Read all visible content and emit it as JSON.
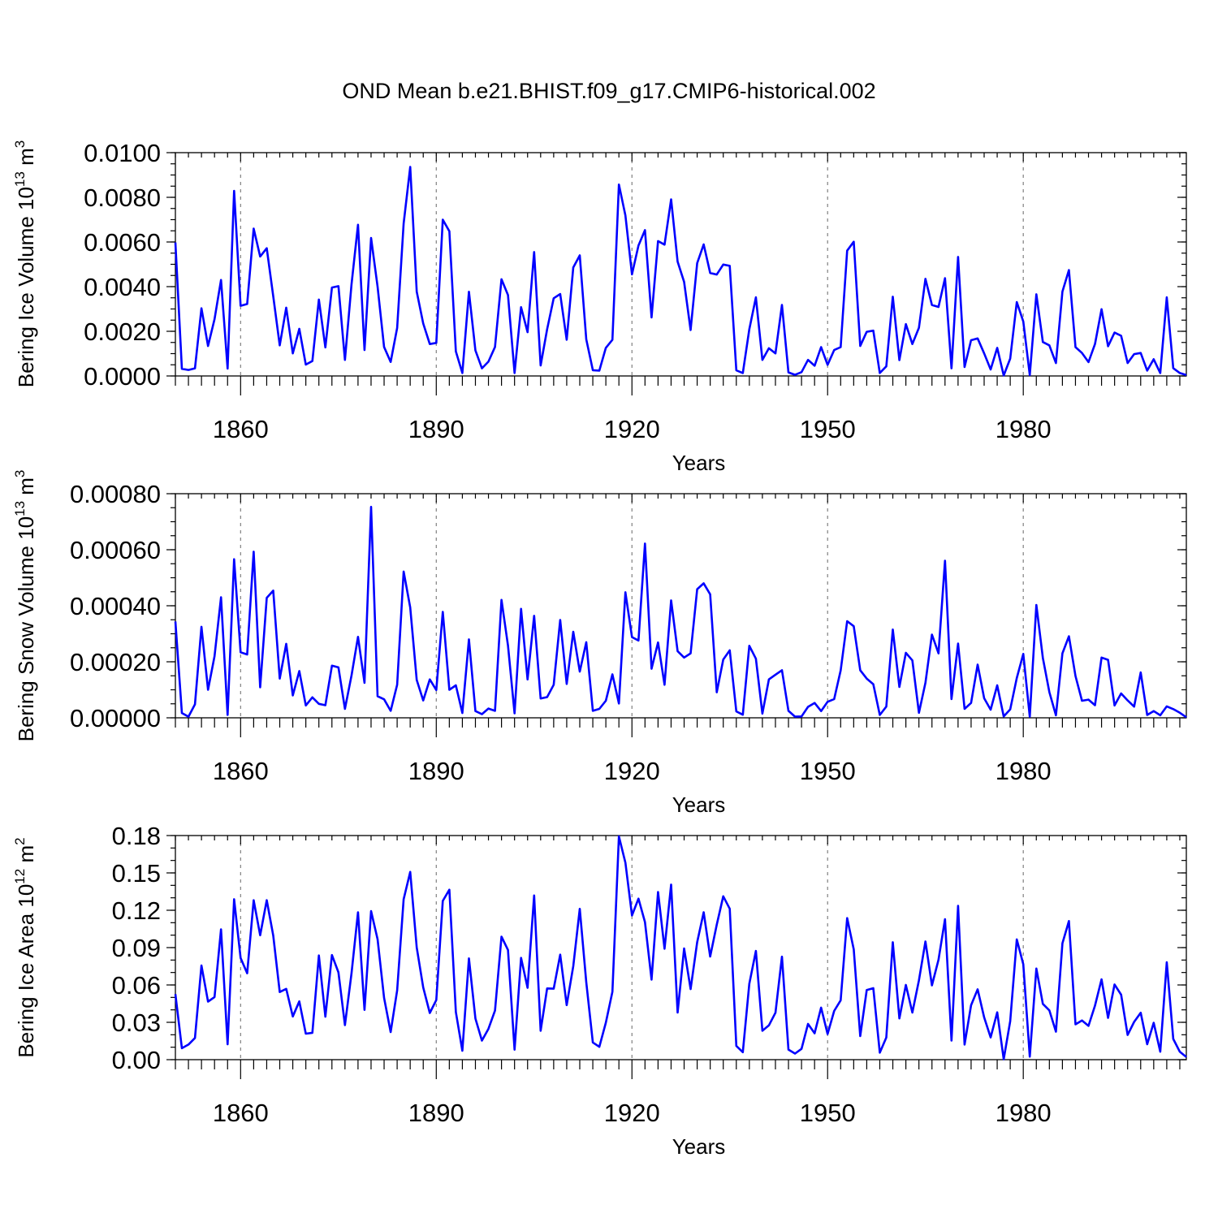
{
  "figure_title": "OND Mean b.e21.BHIST.f09_g17.CMIP6-historical.002",
  "chart_data": [
    {
      "type": "line",
      "title": "",
      "ylabel_main": "Bering Ice Volume 10",
      "ylabel_exp": "13",
      "ylabel_unit": " m",
      "ylabel_unit_exp": "3",
      "xlabel": "Years",
      "xlim": [
        1850,
        2005
      ],
      "ylim": [
        0,
        0.01
      ],
      "yticks": [
        "0.0000",
        "0.0020",
        "0.0040",
        "0.0060",
        "0.0080",
        "0.0100"
      ],
      "ytick_values": [
        0,
        0.002,
        0.004,
        0.006,
        0.008,
        0.01
      ],
      "yminor_step": 0.0005,
      "xticks": [
        "1860",
        "1890",
        "1920",
        "1950",
        "1980"
      ],
      "xtick_values": [
        1860,
        1890,
        1920,
        1950,
        1980
      ],
      "grid": "dashed vertical at major x ticks",
      "series": [
        {
          "name": "Bering Ice Volume",
          "color": "#0000ff",
          "x_start": 1850,
          "x_step": 1,
          "values": [
            0.00598,
            0.00032,
            0.00027,
            0.00034,
            0.00303,
            0.00134,
            0.00254,
            0.0043,
            0.00033,
            0.00829,
            0.00314,
            0.00322,
            0.0066,
            0.00535,
            0.00572,
            0.00357,
            0.00137,
            0.00306,
            0.00101,
            0.00211,
            0.00051,
            0.00067,
            0.00342,
            0.00128,
            0.00396,
            0.00402,
            0.00072,
            0.0041,
            0.00677,
            0.00116,
            0.00618,
            0.004,
            0.0013,
            0.00063,
            0.00215,
            0.00683,
            0.00936,
            0.00378,
            0.00235,
            0.00143,
            0.00148,
            0.007,
            0.00648,
            0.0011,
            0.00013,
            0.00377,
            0.00114,
            0.00034,
            0.00064,
            0.0013,
            0.00433,
            0.00362,
            0.00013,
            0.00308,
            0.00196,
            0.00555,
            0.00047,
            0.00209,
            0.00348,
            0.00367,
            0.00162,
            0.00486,
            0.0054,
            0.00164,
            0.00026,
            0.00024,
            0.00126,
            0.00162,
            0.00857,
            0.00719,
            0.00455,
            0.00584,
            0.00653,
            0.00262,
            0.00604,
            0.00588,
            0.00791,
            0.00512,
            0.00421,
            0.00206,
            0.00505,
            0.00589,
            0.00461,
            0.00454,
            0.00499,
            0.00493,
            0.00025,
            0.00013,
            0.00209,
            0.00352,
            0.00072,
            0.00124,
            0.00101,
            0.00318,
            0.00016,
            5e-05,
            0.00017,
            0.00072,
            0.00046,
            0.00129,
            0.0005,
            0.00116,
            0.00129,
            0.00561,
            0.00601,
            0.00134,
            0.00198,
            0.00203,
            0.00013,
            0.00043,
            0.00355,
            0.00071,
            0.00232,
            0.00143,
            0.00216,
            0.00435,
            0.00318,
            0.00309,
            0.00438,
            0.00034,
            0.00533,
            0.0004,
            0.0016,
            0.00168,
            0.00101,
            0.00029,
            0.00126,
            2e-05,
            0.00078,
            0.00331,
            0.00244,
            4e-05,
            0.00366,
            0.00152,
            0.00137,
            0.00058,
            0.00378,
            0.00474,
            0.00129,
            0.00103,
            0.00062,
            0.00143,
            0.00299,
            0.00133,
            0.00194,
            0.0018,
            0.00058,
            0.00098,
            0.00103,
            0.00024,
            0.00075,
            0.00013,
            0.00352,
            0.00035,
            0.00013,
            4e-05
          ]
        }
      ]
    },
    {
      "type": "line",
      "title": "",
      "ylabel_main": "Bering Snow Volume 10",
      "ylabel_exp": "13",
      "ylabel_unit": " m",
      "ylabel_unit_exp": "3",
      "xlabel": "Years",
      "xlim": [
        1850,
        2005
      ],
      "ylim": [
        0,
        0.0008
      ],
      "yticks": [
        "0.00000",
        "0.00020",
        "0.00040",
        "0.00060",
        "0.00080"
      ],
      "ytick_values": [
        0,
        0.0002,
        0.0004,
        0.0006,
        0.0008
      ],
      "yminor_step": 5e-05,
      "xticks": [
        "1860",
        "1890",
        "1920",
        "1950",
        "1980"
      ],
      "xtick_values": [
        1860,
        1890,
        1920,
        1950,
        1980
      ],
      "grid": "dashed vertical at major x ticks",
      "series": [
        {
          "name": "Bering Snow Volume",
          "color": "#0000ff",
          "x_start": 1850,
          "x_step": 1,
          "values": [
            0.000344,
            1.7e-05,
            4e-06,
            4.8e-05,
            0.000325,
            0.0001,
            0.00022,
            0.00043,
            1e-05,
            0.000566,
            0.000234,
            0.000226,
            0.000593,
            0.000109,
            0.000428,
            0.000454,
            0.00014,
            0.000264,
            8e-05,
            0.000167,
            4.4e-05,
            7.3e-05,
            5e-05,
            4.5e-05,
            0.000186,
            0.00018,
            3.2e-05,
            0.000151,
            0.000289,
            0.000125,
            0.000753,
            7.7e-05,
            6.6e-05,
            2.5e-05,
            0.000118,
            0.000522,
            0.000394,
            0.000135,
            6.2e-05,
            0.000137,
            9.9e-05,
            0.000378,
            0.0001,
            0.000116,
            1.7e-05,
            0.00028,
            2.4e-05,
            1.3e-05,
            3.3e-05,
            2.5e-05,
            0.000421,
            0.000258,
            1.6e-05,
            0.000389,
            0.000137,
            0.000364,
            6.9e-05,
            7.4e-05,
            0.000118,
            0.000349,
            0.000121,
            0.000307,
            0.000165,
            0.00027,
            2.5e-05,
            3.2e-05,
            6.1e-05,
            0.000155,
            5.1e-05,
            0.000448,
            0.000288,
            0.000276,
            0.000622,
            0.000175,
            0.000269,
            0.000118,
            0.000419,
            0.000238,
            0.000215,
            0.00023,
            0.000459,
            0.00048,
            0.000441,
            9.1e-05,
            0.000208,
            0.000241,
            2.3e-05,
            1.1e-05,
            0.000257,
            0.000211,
            1.5e-05,
            0.000137,
            0.000154,
            0.00017,
            2.5e-05,
            4e-06,
            5e-06,
            3.9e-05,
            5.3e-05,
            2.4e-05,
            5.7e-05,
            6.7e-05,
            0.000169,
            0.000345,
            0.000327,
            0.00017,
            0.00014,
            0.00012,
            1e-05,
            4e-05,
            0.000315,
            0.00011,
            0.000232,
            0.000205,
            1.8e-05,
            0.000125,
            0.000297,
            0.00023,
            0.000561,
            6.7e-05,
            0.000265,
            3.2e-05,
            5.3e-05,
            0.00019,
            7e-05,
            2.9e-05,
            0.000116,
            5e-06,
            3e-05,
            0.000142,
            0.000228,
            4e-06,
            0.000403,
            0.000214,
            9.2e-05,
            9e-06,
            0.00023,
            0.000291,
            0.000149,
            6.1e-05,
            6.5e-05,
            4.5e-05,
            0.000215,
            0.000207,
            4.4e-05,
            8.7e-05,
            6.2e-05,
            4e-05,
            0.000162,
            1e-05,
            2.4e-05,
            9e-06,
            4.1e-05,
            3.1e-05,
            1.8e-05,
            2e-06
          ]
        }
      ]
    },
    {
      "type": "line",
      "title": "",
      "ylabel_main": "Bering Ice Area 10",
      "ylabel_exp": "12",
      "ylabel_unit": " m",
      "ylabel_unit_exp": "2",
      "xlabel": "Years",
      "xlim": [
        1850,
        2005
      ],
      "ylim": [
        0,
        0.18
      ],
      "yticks": [
        "0.00",
        "0.03",
        "0.06",
        "0.09",
        "0.12",
        "0.15",
        "0.18"
      ],
      "ytick_values": [
        0,
        0.03,
        0.06,
        0.09,
        0.12,
        0.15,
        0.18
      ],
      "yminor_step": 0.01,
      "xticks": [
        "1860",
        "1890",
        "1920",
        "1950",
        "1980"
      ],
      "xtick_values": [
        1860,
        1890,
        1920,
        1950,
        1980
      ],
      "grid": "dashed vertical at major x ticks",
      "series": [
        {
          "name": "Bering Ice Area",
          "color": "#0000ff",
          "x_start": 1850,
          "x_step": 1,
          "values": [
            0.0526,
            0.0092,
            0.0121,
            0.0174,
            0.0756,
            0.0466,
            0.0503,
            0.1047,
            0.0123,
            0.1289,
            0.0817,
            0.0694,
            0.128,
            0.0999,
            0.1281,
            0.0997,
            0.0543,
            0.0569,
            0.0347,
            0.0468,
            0.0209,
            0.0216,
            0.0837,
            0.0345,
            0.084,
            0.0701,
            0.0277,
            0.0693,
            0.1184,
            0.04,
            0.1193,
            0.0967,
            0.0496,
            0.0222,
            0.0556,
            0.1289,
            0.1508,
            0.0901,
            0.058,
            0.0375,
            0.0479,
            0.1275,
            0.1365,
            0.0383,
            0.0072,
            0.0813,
            0.033,
            0.0153,
            0.0247,
            0.0394,
            0.0988,
            0.0881,
            0.008,
            0.0817,
            0.0577,
            0.1319,
            0.0232,
            0.0572,
            0.057,
            0.0843,
            0.0438,
            0.0751,
            0.1211,
            0.0622,
            0.0138,
            0.0103,
            0.0297,
            0.0545,
            0.1793,
            0.1582,
            0.1158,
            0.1293,
            0.1105,
            0.0643,
            0.1347,
            0.0891,
            0.1406,
            0.0378,
            0.0893,
            0.0567,
            0.0944,
            0.1184,
            0.0828,
            0.1084,
            0.1312,
            0.1212,
            0.011,
            0.006,
            0.061,
            0.0873,
            0.0232,
            0.0275,
            0.0377,
            0.0827,
            0.0081,
            0.0049,
            0.0087,
            0.0287,
            0.0212,
            0.0418,
            0.0206,
            0.0391,
            0.0477,
            0.1137,
            0.0886,
            0.0189,
            0.0559,
            0.0574,
            0.0056,
            0.0178,
            0.0943,
            0.0331,
            0.06,
            0.0378,
            0.0638,
            0.0949,
            0.0597,
            0.0803,
            0.1128,
            0.0153,
            0.1235,
            0.0121,
            0.0437,
            0.0565,
            0.034,
            0.0179,
            0.038,
            0.0004,
            0.0309,
            0.0966,
            0.0766,
            0.0024,
            0.0732,
            0.0448,
            0.0396,
            0.0225,
            0.0934,
            0.1113,
            0.0284,
            0.0315,
            0.0271,
            0.0434,
            0.0645,
            0.0336,
            0.0604,
            0.0522,
            0.0198,
            0.0303,
            0.0377,
            0.0124,
            0.0296,
            0.0064,
            0.0782,
            0.0166,
            0.0063,
            0.0021
          ]
        }
      ]
    }
  ]
}
